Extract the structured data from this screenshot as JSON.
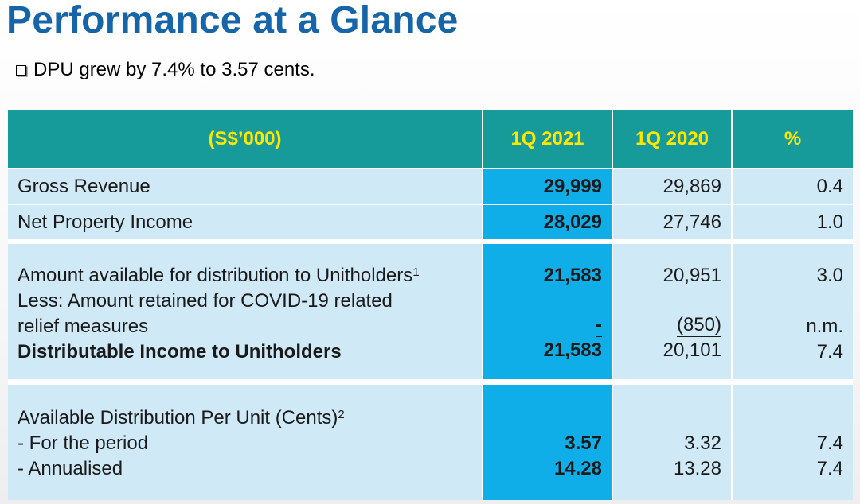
{
  "slide": {
    "title": "Performance at a Glance",
    "bullet": "DPU grew by 7.4% to 3.57 cents."
  },
  "table": {
    "headers": [
      "(S$’000)",
      "1Q 2021",
      "1Q 2020",
      "%"
    ],
    "gross_revenue": {
      "label": "Gross Revenue",
      "q1_2021": "29,999",
      "q1_2020": "29,869",
      "pct": "0.4"
    },
    "npi": {
      "label": "Net Property Income",
      "q1_2021": "28,029",
      "q1_2020": "27,746",
      "pct": "1.0"
    },
    "distribution": {
      "line1_label": "Amount available for distribution to Unitholders",
      "line1_sup": "1",
      "line2_label": "Less: Amount retained for COVID-19 related",
      "line3_label": "relief measures",
      "line4_label": "Distributable Income to Unitholders",
      "line1_q1_2021": "21,583",
      "line1_q1_2020": "20,951",
      "line1_pct": "3.0",
      "line3_q1_2021": "-",
      "line3_q1_2020": "(850)",
      "line3_pct": "n.m.",
      "line4_q1_2021": "21,583",
      "line4_q1_2020": "20,101",
      "line4_pct": "7.4"
    },
    "dpu": {
      "line1_label": "Available Distribution Per Unit (Cents)",
      "line1_sup": "2",
      "line2_label": "- For the period",
      "line3_label": "- Annualised",
      "line2_q1_2021": "3.57",
      "line2_q1_2020": "3.32",
      "line2_pct": "7.4",
      "line3_q1_2021": "14.28",
      "line3_q1_2020": "13.28",
      "line3_pct": "7.4"
    }
  }
}
